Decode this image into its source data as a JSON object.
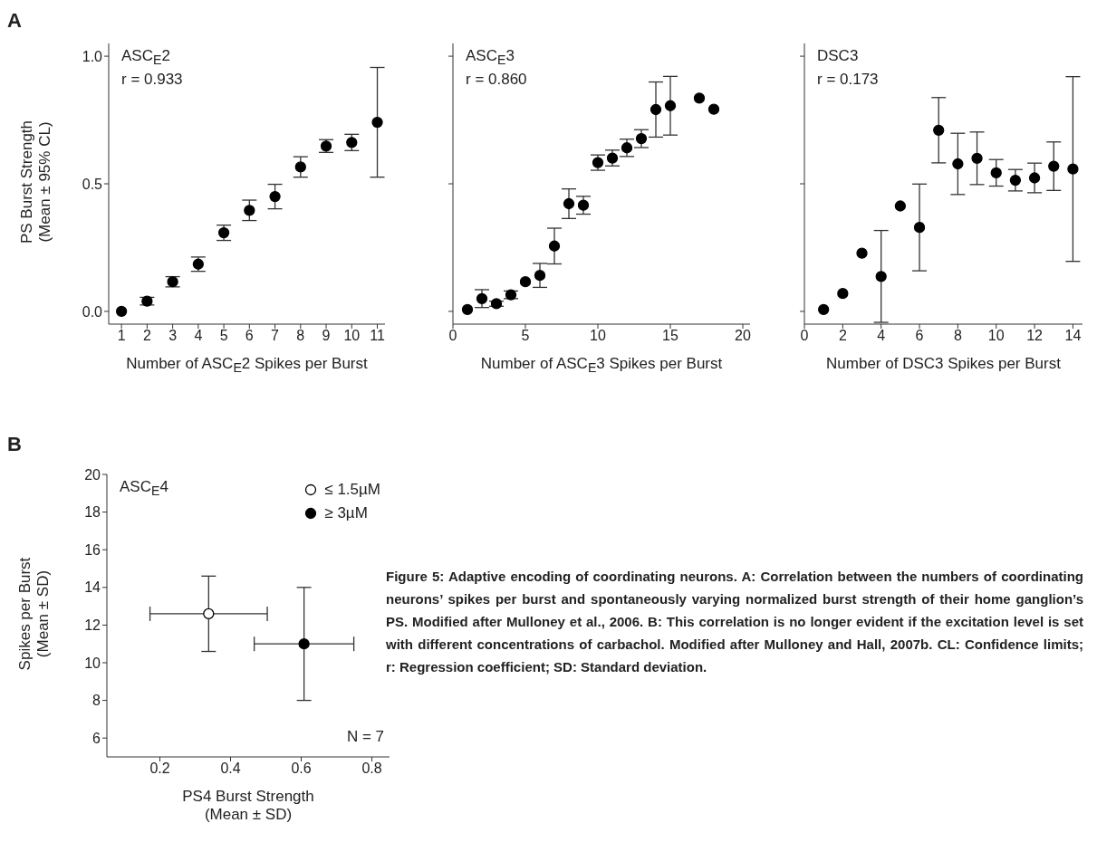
{
  "chart_data": [
    {
      "type": "scatter",
      "title": "ASC$_{E}$2",
      "xlabel": "Number of ASC$_{E}$2 Spikes per Burst",
      "ylabel": "PS Burst Strength (Mean ± 95% CL)",
      "annotations": [
        "A",
        "r = 0.933"
      ],
      "marker": "circle",
      "x": [
        1,
        2,
        3,
        4,
        5,
        6,
        7,
        8,
        9,
        10,
        11
      ],
      "series": [
        {
          "color": "#000000",
          "values": [
            0.0,
            0.04,
            0.116,
            0.185,
            0.308,
            0.396,
            0.45,
            0.566,
            0.648,
            0.662,
            0.741
          ],
          "errors": [
            null,
            0.015,
            0.02,
            0.028,
            0.03,
            0.04,
            0.048,
            0.04,
            0.025,
            0.032,
            0.215
          ]
        }
      ],
      "xlim": [
        0.5,
        11.3
      ],
      "xticks": [
        1,
        2,
        3,
        4,
        5,
        6,
        7,
        8,
        9,
        10,
        11
      ],
      "ylim": [
        -0.05,
        1.05
      ],
      "yticks": [
        {
          "value": 0,
          "label": "0.0"
        },
        {
          "value": 0.5,
          "label": "0.5"
        },
        {
          "value": 1,
          "label": "1.0"
        }
      ]
    },
    {
      "type": "scatter",
      "title": "ASC$_{E}$3",
      "xlabel": "Number of ASC$_{E}$3 Spikes per Burst",
      "annotations": [
        "r = 0.860"
      ],
      "marker": "circle",
      "tick_labels": "x",
      "x": [
        1,
        2,
        3,
        4,
        5,
        6,
        7,
        8,
        9,
        10,
        11,
        12,
        13,
        14,
        15,
        17,
        18
      ],
      "series": [
        {
          "color": "#000000",
          "values": [
            0.007,
            0.05,
            0.03,
            0.065,
            0.116,
            0.141,
            0.256,
            0.422,
            0.416,
            0.583,
            0.601,
            0.641,
            0.677,
            0.791,
            0.806,
            0.836,
            0.792
          ],
          "errors": [
            null,
            0.035,
            0.01,
            0.015,
            null,
            0.047,
            0.07,
            0.058,
            0.035,
            0.03,
            0.031,
            0.034,
            0.035,
            0.108,
            0.115,
            null,
            null
          ]
        }
      ],
      "xlim": [
        0,
        20.5
      ],
      "xticks": [
        0,
        5,
        10,
        15,
        20
      ],
      "ylim": [
        -0.05,
        1.05
      ],
      "yticks": [
        {
          "value": 0,
          "label": null
        },
        {
          "value": 0.5,
          "label": null
        },
        {
          "value": 1,
          "label": null
        }
      ]
    },
    {
      "type": "scatter",
      "title": "DSC3",
      "xlabel": "Number of DSC3 Spikes per Burst",
      "annotations": [
        "r = 0.173"
      ],
      "marker": "circle",
      "tick_labels": "x",
      "x": [
        1,
        2,
        3,
        4,
        5,
        6,
        7,
        8,
        9,
        10,
        11,
        12,
        13,
        14
      ],
      "series": [
        {
          "color": "#000000",
          "values": [
            0.007,
            0.07,
            0.228,
            0.137,
            0.413,
            0.329,
            0.71,
            0.578,
            0.6,
            0.543,
            0.514,
            0.523,
            0.569,
            0.558
          ],
          "errors": [
            null,
            null,
            null,
            0.18,
            null,
            0.17,
            0.128,
            0.12,
            0.103,
            0.052,
            0.042,
            0.058,
            0.095,
            0.362
          ]
        }
      ],
      "xlim": [
        0,
        14.5
      ],
      "xticks": [
        0,
        2,
        4,
        6,
        8,
        10,
        12,
        14
      ],
      "ylim": [
        -0.05,
        1.05
      ],
      "yticks": [
        {
          "value": 0,
          "label": null
        },
        {
          "value": 0.5,
          "label": null
        },
        {
          "value": 1,
          "label": null
        }
      ]
    },
    {
      "type": "scatter",
      "title": "ASC$_{E}$4",
      "xlabel": "PS4 Burst Strength (Mean ± SD)",
      "ylabel": "Spikes per Burst (Mean ± SD)",
      "annotations": [
        "B",
        "N = 7",
        "Figure 5: Adaptive encoding of coordinating neurons. A: Correlation between the numbers of coordinating neurons’ spikes per burst and spontaneously varying normalized burst strength of their home ganglion’s PS. Modified after Mulloney et al., 2006. B: This correlation is no longer evident if the excitation level is set with different concentrations of carbachol. Modified after Mulloney and Hall, 2007b. CL: Confidence limits; r: Regression coefficient; SD: Standard deviation."
      ],
      "marker": "circle",
      "legend": "top right",
      "series": [
        {
          "name": "≤ 1.5µM",
          "color": "#ffffff",
          "x": [
            0.338
          ],
          "values": [
            12.6
          ],
          "errors": [
            2.0
          ],
          "xerrors": [
            0.166
          ]
        },
        {
          "name": "≥ 3µM",
          "color": "#000000",
          "x": [
            0.608
          ],
          "values": [
            11.0
          ],
          "errors": [
            3.0
          ],
          "xerrors": [
            0.141
          ]
        }
      ],
      "xlim": [
        0.05,
        0.85
      ],
      "xticks": [
        0.2,
        0.4,
        0.6,
        0.8
      ],
      "ylim": [
        5,
        20
      ],
      "yticks": [
        6,
        8,
        10,
        12,
        14,
        16,
        18,
        20
      ]
    }
  ]
}
